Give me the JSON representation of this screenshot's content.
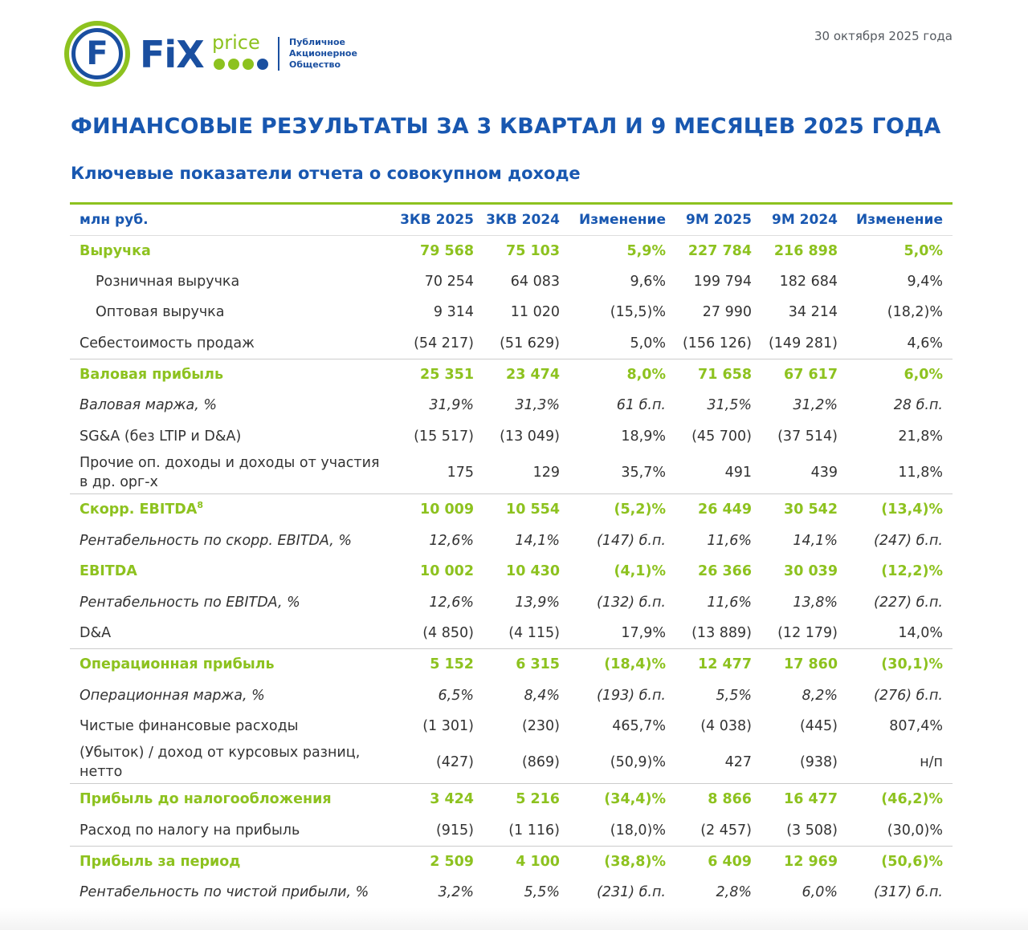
{
  "header": {
    "logo": {
      "brand_fix": "FiX",
      "brand_price": "price",
      "brand_initial": "F",
      "legal_lines": [
        "Публичное",
        "Акционерное",
        "Общество"
      ],
      "colors": {
        "blue": "#1a4fa0",
        "green": "#8dc21f"
      }
    },
    "date": "30 октября 2025 года"
  },
  "title": "ФИНАНСОВЫЕ РЕЗУЛЬТАТЫ ЗА 3 КВАРТАЛ И 9 МЕСЯЦЕВ 2025 ГОДА",
  "subtitle": "Ключевые показатели отчета о совокупном доходе",
  "colors": {
    "heading_blue": "#1857b0",
    "key_green": "#8dc21f",
    "text": "#333333"
  },
  "table": {
    "columns": [
      "млн руб.",
      "3КВ 2025",
      "3КВ 2024",
      "Изменение",
      "9М 2025",
      "9М 2024",
      "Изменение"
    ],
    "rows": [
      {
        "label": "Выручка",
        "values": [
          "79 568",
          "75 103",
          "5,9%",
          "227 784",
          "216 898",
          "5,0%"
        ],
        "style": "key"
      },
      {
        "label": "Розничная выручка",
        "values": [
          "70 254",
          "64 083",
          "9,6%",
          "199 794",
          "182 684",
          "9,4%"
        ],
        "style": "indent"
      },
      {
        "label": "Оптовая выручка",
        "values": [
          "9 314",
          "11 020",
          "(15,5)%",
          "27 990",
          "34 214",
          "(18,2)%"
        ],
        "style": "indent"
      },
      {
        "label": "Себестоимость продаж",
        "values": [
          "(54 217)",
          "(51 629)",
          "5,0%",
          "(156 126)",
          "(149 281)",
          "4,6%"
        ],
        "style": "normal"
      },
      {
        "label": "Валовая прибыль",
        "values": [
          "25 351",
          "23 474",
          "8,0%",
          "71 658",
          "67 617",
          "6,0%"
        ],
        "style": "key"
      },
      {
        "label": "Валовая маржа, %",
        "values": [
          "31,9%",
          "31,3%",
          "61 б.п.",
          "31,5%",
          "31,2%",
          "28 б.п."
        ],
        "style": "italic"
      },
      {
        "label": "SG&A (без LTIP и D&A)",
        "values": [
          "(15 517)",
          "(13 049)",
          "18,9%",
          "(45 700)",
          "(37 514)",
          "21,8%"
        ],
        "style": "normal"
      },
      {
        "label": "Прочие оп. доходы и доходы от участия в др. орг-х",
        "values": [
          "175",
          "129",
          "35,7%",
          "491",
          "439",
          "11,8%"
        ],
        "style": "wrap"
      },
      {
        "label": "Скорр. EBITDA",
        "footnote": "8",
        "values": [
          "10 009",
          "10 554",
          "(5,2)%",
          "26 449",
          "30 542",
          "(13,4)%"
        ],
        "style": "key"
      },
      {
        "label": "Рентабельность по скорр. EBITDA, %",
        "values": [
          "12,6%",
          "14,1%",
          "(147) б.п.",
          "11,6%",
          "14,1%",
          "(247) б.п."
        ],
        "style": "italic"
      },
      {
        "label": "EBITDA",
        "values": [
          "10 002",
          "10 430",
          "(4,1)%",
          "26 366",
          "30 039",
          "(12,2)%"
        ],
        "style": "key"
      },
      {
        "label": "Рентабельность по EBITDA, %",
        "values": [
          "12,6%",
          "13,9%",
          "(132) б.п.",
          "11,6%",
          "13,8%",
          "(227) б.п."
        ],
        "style": "italic"
      },
      {
        "label": "D&A",
        "values": [
          "(4 850)",
          "(4 115)",
          "17,9%",
          "(13 889)",
          "(12 179)",
          "14,0%"
        ],
        "style": "normal"
      },
      {
        "label": "Операционная прибыль",
        "values": [
          "5 152",
          "6 315",
          "(18,4)%",
          "12 477",
          "17 860",
          "(30,1)%"
        ],
        "style": "key"
      },
      {
        "label": "Операционная маржа, %",
        "values": [
          "6,5%",
          "8,4%",
          "(193) б.п.",
          "5,5%",
          "8,2%",
          "(276) б.п."
        ],
        "style": "italic"
      },
      {
        "label": "Чистые финансовые расходы",
        "values": [
          "(1 301)",
          "(230)",
          "465,7%",
          "(4 038)",
          "(445)",
          "807,4%"
        ],
        "style": "normal"
      },
      {
        "label": "(Убыток) / доход от курсовых разниц, нетто",
        "values": [
          "(427)",
          "(869)",
          "(50,9)%",
          "427",
          "(938)",
          "н/п"
        ],
        "style": "wrap"
      },
      {
        "label": "Прибыль до налогообложения",
        "values": [
          "3 424",
          "5 216",
          "(34,4)%",
          "8 866",
          "16 477",
          "(46,2)%"
        ],
        "style": "key"
      },
      {
        "label": "Расход по налогу на прибыль",
        "values": [
          "(915)",
          "(1 116)",
          "(18,0)%",
          "(2 457)",
          "(3 508)",
          "(30,0)%"
        ],
        "style": "normal"
      },
      {
        "label": "Прибыль за период",
        "values": [
          "2 509",
          "4 100",
          "(38,8)%",
          "6 409",
          "12 969",
          "(50,6)%"
        ],
        "style": "key"
      },
      {
        "label": "Рентабельность по чистой прибыли, %",
        "values": [
          "3,2%",
          "5,5%",
          "(231) б.п.",
          "2,8%",
          "6,0%",
          "(317) б.п."
        ],
        "style": "italic"
      }
    ]
  }
}
